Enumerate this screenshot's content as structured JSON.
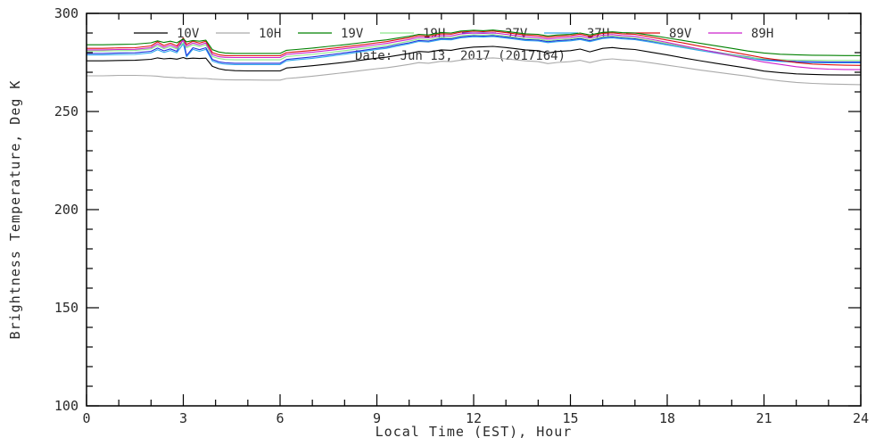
{
  "chart_data": {
    "type": "line",
    "title": "",
    "xlabel": "Local Time (EST), Hour",
    "ylabel": "Brightness Temperature, Deg K",
    "annotation": "Date: Jun 13, 2017 (2017164)",
    "xlim": [
      0,
      24
    ],
    "ylim": [
      100,
      300
    ],
    "xticks_major": [
      0,
      3,
      6,
      9,
      12,
      15,
      18,
      21,
      24
    ],
    "xtick_minor_step": 1,
    "yticks_major": [
      100,
      150,
      200,
      250,
      300
    ],
    "ytick_minor_step": 10,
    "grid": false,
    "legend_position": "top-inside",
    "legend_order": [
      "10V",
      "10H",
      "19V",
      "19H",
      "37V",
      "37H",
      "89V",
      "89H"
    ],
    "draw_order": [
      "10H",
      "10V",
      "37H",
      "37V",
      "19H",
      "89H",
      "89V",
      "19V"
    ],
    "x": [
      0,
      0.5,
      1,
      1.5,
      2,
      2.2,
      2.4,
      2.6,
      2.8,
      3,
      3.1,
      3.3,
      3.5,
      3.7,
      3.9,
      4.1,
      4.3,
      4.6,
      5,
      5.5,
      6,
      6.2,
      6.5,
      7,
      7.5,
      8,
      8.5,
      9,
      9.3,
      9.6,
      10,
      10.3,
      10.6,
      11,
      11.3,
      11.6,
      12,
      12.3,
      12.6,
      13,
      13.3,
      13.6,
      14,
      14.3,
      14.6,
      15,
      15.3,
      15.6,
      16,
      16.3,
      16.6,
      17,
      17.5,
      18,
      18.5,
      19,
      19.5,
      20,
      20.5,
      21,
      21.5,
      22,
      22.5,
      23,
      23.5,
      24
    ],
    "series": [
      {
        "name": "10V",
        "color": "#000000",
        "values": [
          275.8,
          275.8,
          276.0,
          276.1,
          276.6,
          277.3,
          276.8,
          277.1,
          276.7,
          277.5,
          276.9,
          277.2,
          277.0,
          277.2,
          273.0,
          271.8,
          271.2,
          270.8,
          270.7,
          270.7,
          270.7,
          272.2,
          272.6,
          273.3,
          274.2,
          275.1,
          276.1,
          277.2,
          277.7,
          278.5,
          279.6,
          280.6,
          280.3,
          281.4,
          281.2,
          282.1,
          282.8,
          283.0,
          283.2,
          282.6,
          282.0,
          281.4,
          281.0,
          279.8,
          280.6,
          281.0,
          281.8,
          280.4,
          282.2,
          282.6,
          282.0,
          281.6,
          280.2,
          278.8,
          277.3,
          275.9,
          274.6,
          273.3,
          272.1,
          270.6,
          269.8,
          269.2,
          268.9,
          268.7,
          268.6,
          268.6
        ]
      },
      {
        "name": "10H",
        "color": "#aaaaaa",
        "values": [
          268.2,
          268.2,
          268.4,
          268.4,
          268.2,
          268.0,
          267.6,
          267.4,
          267.2,
          267.3,
          267.0,
          266.9,
          266.8,
          266.8,
          266.5,
          266.3,
          266.2,
          266.1,
          266.1,
          266.0,
          266.0,
          266.8,
          267.2,
          268.0,
          268.9,
          269.8,
          270.8,
          271.8,
          272.3,
          273.0,
          274.0,
          274.9,
          274.6,
          275.6,
          275.4,
          276.2,
          276.9,
          277.1,
          277.3,
          276.8,
          276.3,
          275.8,
          275.4,
          274.4,
          275.0,
          275.4,
          276.1,
          274.9,
          276.4,
          276.8,
          276.3,
          275.9,
          274.8,
          273.6,
          272.4,
          271.2,
          270.1,
          269.0,
          268.0,
          266.6,
          265.6,
          264.8,
          264.3,
          264.0,
          263.8,
          263.7
        ]
      },
      {
        "name": "19V",
        "color": "#008000",
        "values": [
          284.0,
          284.0,
          284.2,
          284.3,
          285.0,
          286.0,
          285.2,
          285.8,
          285.0,
          287.0,
          285.5,
          286.2,
          285.8,
          286.3,
          281.5,
          280.3,
          279.8,
          279.6,
          279.6,
          279.6,
          279.6,
          281.2,
          281.6,
          282.3,
          283.2,
          284.0,
          285.0,
          286.0,
          286.5,
          287.3,
          288.3,
          289.3,
          289.0,
          290.2,
          290.0,
          291.0,
          291.4,
          291.2,
          291.5,
          290.8,
          290.2,
          289.6,
          289.3,
          288.5,
          289.0,
          289.3,
          290.0,
          289.0,
          290.3,
          290.6,
          290.2,
          290.0,
          288.8,
          287.5,
          286.2,
          284.8,
          283.5,
          282.2,
          280.8,
          279.8,
          279.2,
          278.9,
          278.7,
          278.6,
          278.5,
          278.5
        ]
      },
      {
        "name": "19H",
        "color": "#8ae88a",
        "values": [
          280.8,
          280.8,
          281.0,
          281.1,
          281.9,
          283.5,
          282.0,
          283.0,
          281.9,
          285.0,
          282.5,
          284.0,
          283.1,
          284.0,
          278.0,
          277.0,
          276.5,
          276.3,
          276.3,
          276.3,
          276.3,
          278.0,
          278.4,
          279.1,
          280.0,
          281.0,
          282.0,
          283.1,
          283.7,
          284.6,
          285.8,
          286.9,
          286.6,
          287.8,
          287.6,
          288.6,
          289.1,
          288.9,
          289.2,
          288.4,
          287.8,
          287.2,
          286.9,
          286.1,
          286.6,
          287.0,
          287.7,
          286.6,
          288.1,
          288.4,
          287.9,
          287.5,
          286.1,
          284.6,
          283.1,
          281.6,
          280.2,
          278.8,
          277.6,
          276.8,
          276.4,
          276.2,
          276.1,
          276.0,
          276.0,
          276.0
        ]
      },
      {
        "name": "37V",
        "color": "#2233dd",
        "values": [
          279.6,
          279.6,
          279.8,
          279.9,
          280.7,
          282.3,
          280.9,
          281.9,
          280.7,
          287.0,
          278.5,
          282.5,
          281.5,
          282.5,
          276.5,
          275.3,
          274.8,
          274.6,
          274.6,
          274.6,
          274.6,
          276.5,
          277.0,
          277.8,
          278.8,
          279.9,
          281.0,
          282.2,
          282.8,
          283.8,
          285.0,
          286.2,
          285.9,
          287.2,
          287.0,
          288.0,
          288.6,
          288.4,
          288.7,
          287.9,
          287.3,
          286.7,
          286.4,
          285.6,
          286.1,
          286.5,
          287.2,
          286.1,
          287.7,
          288.0,
          287.5,
          287.1,
          285.8,
          284.4,
          283.0,
          281.6,
          280.3,
          279.0,
          277.8,
          276.5,
          275.9,
          275.5,
          275.3,
          275.2,
          275.2,
          275.2
        ]
      },
      {
        "name": "37H",
        "color": "#33aaee",
        "values": [
          278.8,
          278.8,
          279.0,
          279.1,
          279.9,
          281.5,
          280.1,
          281.1,
          279.9,
          284.5,
          277.8,
          281.7,
          280.7,
          281.7,
          275.7,
          274.6,
          274.1,
          273.9,
          273.9,
          273.9,
          273.9,
          275.8,
          276.3,
          277.1,
          278.1,
          279.2,
          280.4,
          281.6,
          282.2,
          283.2,
          284.5,
          285.7,
          285.4,
          286.7,
          286.5,
          287.5,
          288.1,
          287.9,
          288.2,
          287.4,
          286.8,
          286.2,
          285.9,
          285.1,
          285.6,
          286.0,
          286.7,
          285.6,
          287.2,
          287.5,
          287.0,
          286.6,
          285.3,
          283.9,
          282.5,
          281.1,
          279.8,
          278.5,
          277.3,
          276.1,
          275.5,
          275.1,
          274.9,
          274.8,
          274.8,
          274.8
        ]
      },
      {
        "name": "89V",
        "color": "#dd1111",
        "values": [
          282.2,
          282.2,
          282.4,
          282.5,
          283.4,
          285.5,
          283.6,
          284.8,
          283.4,
          287.5,
          284.2,
          285.8,
          284.8,
          285.8,
          280.0,
          278.9,
          278.5,
          278.4,
          278.4,
          278.4,
          278.4,
          280.0,
          280.4,
          281.1,
          282.0,
          282.9,
          283.9,
          285.0,
          285.6,
          286.5,
          287.6,
          288.7,
          288.4,
          289.6,
          289.4,
          290.4,
          290.9,
          290.7,
          291.0,
          290.2,
          289.6,
          289.0,
          288.6,
          287.8,
          288.3,
          288.7,
          289.4,
          288.3,
          289.8,
          290.1,
          289.6,
          289.3,
          287.9,
          286.4,
          284.9,
          283.3,
          281.8,
          280.3,
          278.8,
          277.3,
          276.2,
          274.9,
          274.2,
          273.8,
          273.6,
          273.5
        ]
      },
      {
        "name": "89H",
        "color": "#cc22cc",
        "values": [
          281.4,
          281.4,
          281.6,
          281.7,
          282.5,
          284.5,
          282.7,
          283.9,
          282.5,
          286.3,
          283.3,
          284.9,
          283.9,
          284.9,
          279.0,
          277.9,
          277.6,
          277.5,
          277.5,
          277.5,
          277.5,
          279.1,
          279.5,
          280.2,
          281.1,
          282.0,
          283.0,
          284.1,
          284.7,
          285.6,
          286.7,
          287.8,
          287.5,
          288.7,
          288.5,
          289.5,
          290.0,
          289.8,
          290.1,
          289.3,
          288.7,
          288.1,
          287.7,
          286.9,
          287.4,
          287.8,
          288.5,
          287.4,
          288.9,
          289.2,
          288.7,
          288.3,
          286.8,
          285.2,
          283.5,
          281.8,
          280.1,
          278.4,
          276.8,
          275.2,
          274.0,
          272.8,
          272.0,
          271.6,
          271.4,
          271.3
        ]
      }
    ]
  }
}
